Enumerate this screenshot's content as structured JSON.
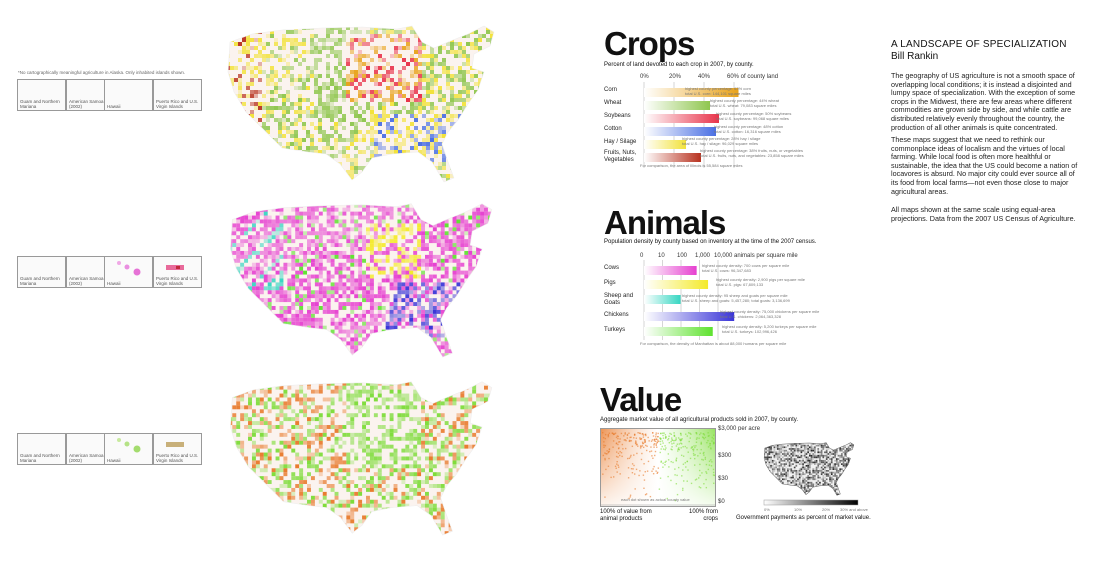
{
  "inset_note": "*No cartographically meaningful agriculture in Alaska. Only inhabited islands shown.",
  "inset_labels": [
    "Guam and Northern Mariana",
    "American Samoa (2002)",
    "Hawaii",
    "Puerto Rico and U.S. Virgin Islands"
  ],
  "colors": {
    "corn": "#e8a21a",
    "wheat": "#8fc64e",
    "soybeans": "#e8334a",
    "cotton": "#4a6fe3",
    "hay": "#f2e23a",
    "fruits": "#b8321f",
    "cows": "#e640d0",
    "pigs": "#f4ea2a",
    "sheep": "#36d6c2",
    "chickens": "#3a35d8",
    "turkeys": "#5ee22e",
    "value_animal": "#e8792a",
    "value_crop": "#7edc3a"
  },
  "crops": {
    "title": "Crops",
    "subtitle": "Percent of land devoted to each crop in 2007, by county.",
    "ticks": [
      "0%",
      "20%",
      "40%",
      "60% of county land"
    ],
    "rows": [
      {
        "label": "Corn",
        "pct": 63,
        "note": "highest county percentage: 63% corn\ntotal U.S. corn: 144,101 square miles",
        "color": "corn"
      },
      {
        "label": "Wheat",
        "pct": 44,
        "note": "highest county percentage: 44% wheat\ntotal U.S. wheat: 79,083 square miles",
        "color": "wheat"
      },
      {
        "label": "Soybeans",
        "pct": 50,
        "note": "highest county percentage: 50% soybeans\ntotal U.S. soybeans: 99,068 square miles",
        "color": "soybeans"
      },
      {
        "label": "Cotton",
        "pct": 48,
        "note": "highest county percentage: 48% cotton\ntotal U.S. cotton: 16,316 square miles",
        "color": "cotton"
      },
      {
        "label": "Hay / Silage",
        "pct": 28,
        "note": "highest county percentage: 28% hay / silage\ntotal U.S. hay / silage: 96,029 square miles",
        "color": "hay"
      },
      {
        "label": "Fruits, Nuts, Vegetables",
        "pct": 38,
        "note": "highest county percentage: 38% fruits, nuts, or vegetables\ntotal U.S. fruits, nuts, and vegetables: 23,858 square miles",
        "color": "fruits"
      }
    ],
    "footnote": "For comparison, the area of Illinois is 55,584 square miles"
  },
  "animals": {
    "title": "Animals",
    "subtitle": "Population density by county based on inventory at the time of the 2007 census.",
    "ticks": [
      "0",
      "10",
      "100",
      "1,000",
      "10,000 animals per square mile"
    ],
    "rows": [
      {
        "label": "Cows",
        "density": 700,
        "note": "highest county density: 700 cows per square mile\ntotal U.S. cows: 96,347,683",
        "color": "cows"
      },
      {
        "label": "Pigs",
        "density": 2900,
        "note": "highest county density: 2,900 pigs per square mile\ntotal U.S. pigs: 67,809,133",
        "color": "pigs"
      },
      {
        "label": "Sheep and Goats",
        "density": 95,
        "note": "highest county density: 95 sheep and goats per square mile\ntotal U.S. sheep and goats: 5,457,280; total goats: 3,136,699",
        "color": "sheep"
      },
      {
        "label": "Chickens",
        "density": 75000,
        "note": "highest county density: 75,000 chickens per square mile\ntotal U.S. chickens: 2,064,363,328",
        "color": "chickens"
      },
      {
        "label": "Turkeys",
        "density": 5200,
        "note": "highest county density: 5,200 turkeys per square mile\ntotal U.S. turkeys: 102,996,426",
        "color": "turkeys"
      }
    ],
    "footnote": "For comparison, the density of Manhattan is about 88,000 humans per square mile"
  },
  "value": {
    "title": "Value",
    "subtitle": "Aggregate market value of all agricultural products sold in 2007, by county.",
    "yticks": [
      "$3,000 per acre",
      "$300",
      "$30",
      "$0"
    ],
    "left_caption": "100% of value from animal products",
    "right_caption": "100% from crops",
    "inner_note": "each dot shown as actual county value",
    "gov_legend": [
      "0%",
      "10%",
      "20%",
      "30% and above"
    ],
    "gov_caption": "Government payments as percent of market value."
  },
  "essay": {
    "title": "A LANDSCAPE OF SPECIALIZATION",
    "author": "Bill Rankin",
    "p1": "The geography of US agriculture is not a smooth space of overlapping local conditions; it is instead a disjointed and lumpy space of specialization. With the exception of some crops in the Midwest, there are few areas where different commodities are grown side by side, and while cattle are distributed relatively evenly throughout the country, the production of all other animals is quite concentrated.",
    "p2": "These maps suggest that we need to rethink our commonplace ideas of localism and the virtues of local farming. While local food is often more healthful or sustainable, the idea that the US could become a nation of locavores is absurd. No major city could ever source all of its food from local farms—not even those close to major agricultural areas.",
    "p3": "All maps shown at the same scale using equal-area projections. Data from the 2007 US Census of Agriculture."
  }
}
